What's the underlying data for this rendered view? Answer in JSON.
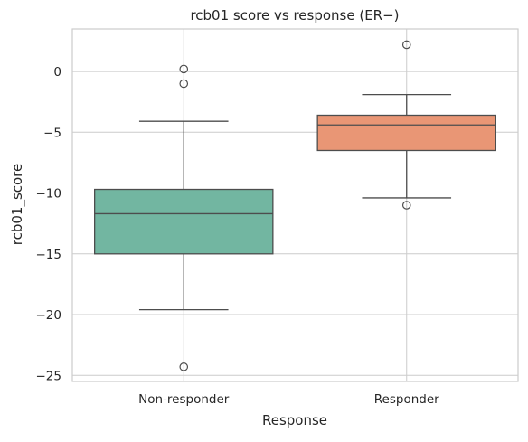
{
  "chart_data": {
    "type": "box",
    "title": "rcb01 score vs response (ER−)",
    "xlabel": "Response",
    "ylabel": "rcb01_score",
    "ylim": [
      -25.5,
      3.5
    ],
    "yticks": [
      0,
      -5,
      -10,
      -15,
      -20,
      -25
    ],
    "ytick_labels": [
      "0",
      "−5",
      "−10",
      "−15",
      "−20",
      "−25"
    ],
    "grid": true,
    "categories": [
      "Non-responder",
      "Responder"
    ],
    "boxes": [
      {
        "category": "Non-responder",
        "color": "#72b6a1",
        "whisker_low": -19.6,
        "q1": -15.0,
        "median": -11.7,
        "q3": -9.7,
        "whisker_high": -4.1,
        "outliers": [
          0.2,
          -1.0,
          -24.3
        ]
      },
      {
        "category": "Responder",
        "color": "#e99675",
        "whisker_low": -10.4,
        "q1": -6.5,
        "median": -4.4,
        "q3": -3.6,
        "whisker_high": -1.9,
        "outliers": [
          2.2,
          -11.0
        ]
      }
    ]
  }
}
